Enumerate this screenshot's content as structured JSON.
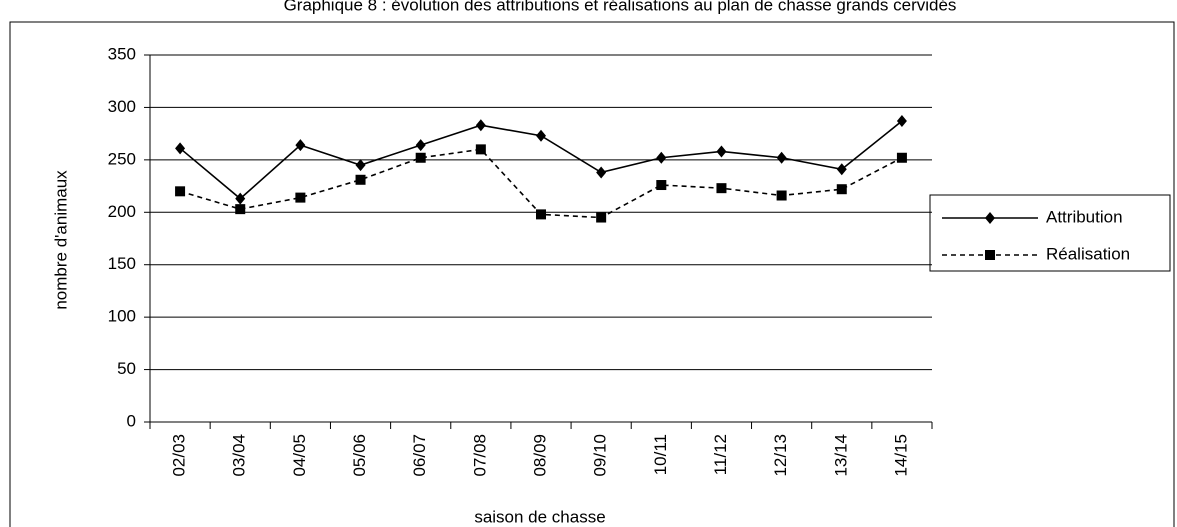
{
  "chart_data": {
    "type": "line",
    "title": "Graphique 8 : évolution des attributions et réalisations au plan de chasse grands cervidés",
    "x_label": "saison de chasse",
    "y_label": "nombre d'animaux",
    "categories": [
      "02/03",
      "03/04",
      "04/05",
      "05/06",
      "06/07",
      "07/08",
      "08/09",
      "09/10",
      "10/11",
      "11/12",
      "12/13",
      "13/14",
      "14/15"
    ],
    "series": [
      {
        "name": "Attribution",
        "color": "#000000",
        "marker": "diamond",
        "dash": "solid",
        "values": [
          261,
          213,
          264,
          245,
          264,
          283,
          273,
          238,
          252,
          258,
          252,
          241,
          287
        ]
      },
      {
        "name": "Réalisation",
        "color": "#000000",
        "marker": "square",
        "dash": "dashed",
        "values": [
          220,
          203,
          214,
          231,
          252,
          260,
          198,
          195,
          226,
          223,
          216,
          222,
          252
        ]
      }
    ],
    "ylim": [
      0,
      350
    ],
    "yticks": [
      0,
      50,
      100,
      150,
      200,
      250,
      300,
      350
    ],
    "grid": true,
    "legend": "right"
  }
}
